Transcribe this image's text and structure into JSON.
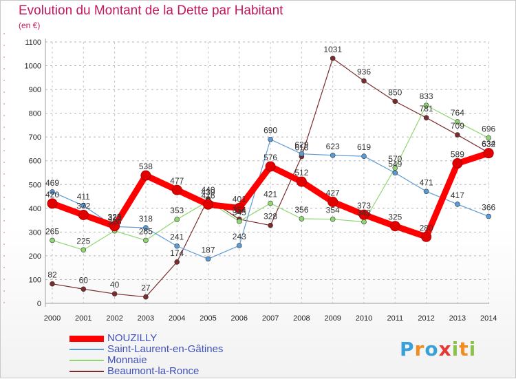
{
  "chart_data": {
    "type": "line",
    "title": "Evolution du Montant de la Dette par Habitant",
    "subtitle": "(en €)",
    "x": [
      "2000",
      "2001",
      "2002",
      "2003",
      "2004",
      "2005",
      "2006",
      "2007",
      "2008",
      "2009",
      "2010",
      "2011",
      "2012",
      "2013",
      "2014"
    ],
    "ylim": [
      0,
      1100
    ],
    "yticks": [
      "0",
      "100",
      "200",
      "300",
      "400",
      "500",
      "600",
      "700",
      "800",
      "900",
      "1000",
      "1100"
    ],
    "grid": true,
    "legend_position": "bottom-left",
    "series": [
      {
        "name": "NOUZILLY",
        "color": "#ff0000",
        "values": [
          420,
          372,
          325,
          538,
          477,
          416,
          401,
          576,
          512,
          427,
          373,
          325,
          280,
          589,
          632
        ],
        "labels": [
          "420",
          "372",
          "325",
          "538",
          "477",
          "416",
          "401",
          "576",
          "512",
          "427",
          "373",
          "325",
          "280",
          "589",
          "632"
        ]
      },
      {
        "name": "Saint-Laurent-en-Gâtines",
        "color": "#5b9bd5",
        "values": [
          469,
          411,
          323,
          318,
          241,
          187,
          243,
          690,
          629,
          623,
          619,
          549,
          471,
          417,
          366
        ],
        "labels": [
          "469",
          "411",
          "323",
          "318",
          "241",
          "187",
          "243",
          "690",
          "629",
          "623",
          "619",
          "549",
          "471",
          "417",
          "366"
        ]
      },
      {
        "name": "Monnaie",
        "color": "#8fd672",
        "values": [
          265,
          225,
          305,
          265,
          353,
          430,
          345,
          421,
          356,
          354,
          343,
          570,
          833,
          764,
          696
        ],
        "labels": [
          "265",
          "225",
          "305",
          "265",
          "353",
          "430",
          "345",
          "421",
          "356",
          "354",
          "343",
          "570",
          "833",
          "764",
          "696"
        ]
      },
      {
        "name": "Beaumont-la-Ronce",
        "color": "#7b2c2c",
        "values": [
          82,
          60,
          40,
          27,
          174,
          440,
          354,
          328,
          618,
          1031,
          936,
          850,
          781,
          709,
          634
        ],
        "labels": [
          "82",
          "60",
          "40",
          "27",
          "174",
          "440",
          "354",
          "328",
          "618",
          "1031",
          "936",
          "850",
          "781",
          "709",
          "634"
        ]
      }
    ]
  },
  "logo": {
    "text": "Proxiti"
  }
}
